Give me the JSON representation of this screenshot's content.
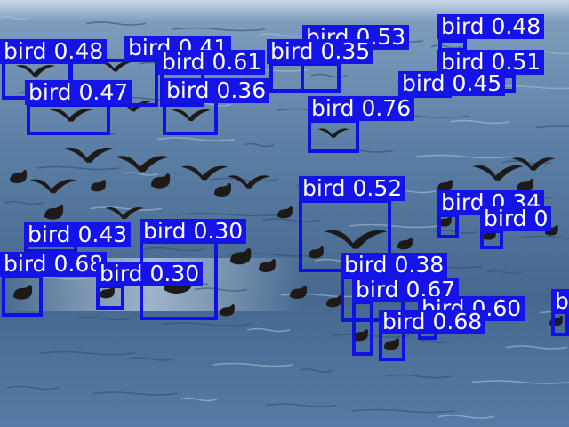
{
  "image": {
    "description_tag": "object-detection-output",
    "colors": {
      "box": "#1010e6",
      "label_bg": "#1414e8",
      "label_text": "#ffffff"
    }
  },
  "detections": [
    {
      "label": "bird 0.48"
    },
    {
      "label": "bird 0.41"
    },
    {
      "label": "bird 0.61"
    },
    {
      "label": "bird 0.53"
    },
    {
      "label": "bird 0.35"
    },
    {
      "label": "bird 0.48"
    },
    {
      "label": "bird 0.51"
    },
    {
      "label": "bird 0.45"
    },
    {
      "label": "bird 0.47"
    },
    {
      "label": "bird 0.36"
    },
    {
      "label": "bird 0.76"
    },
    {
      "label": "bird 0.52"
    },
    {
      "label": "bird 0.34"
    },
    {
      "label": "bird 0"
    },
    {
      "label": "bird 0.43"
    },
    {
      "label": "bird 0.30"
    },
    {
      "label": "bird 0.68"
    },
    {
      "label": "bird 0.30"
    },
    {
      "label": "bird 0.38"
    },
    {
      "label": "bird 0.67"
    },
    {
      "label": "bird 0.60"
    },
    {
      "label": "bird 0.68"
    },
    {
      "label": "b"
    }
  ]
}
